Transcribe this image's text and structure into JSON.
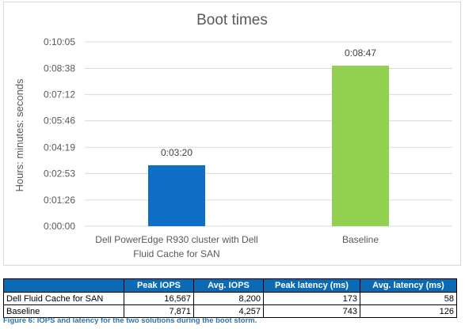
{
  "chart_data": {
    "type": "bar",
    "title": "Boot times",
    "xlabel": "",
    "ylabel": "Hours: minutes: seconds",
    "categories": [
      "Dell PowerEdge R930 cluster with Dell Fluid Cache for SAN",
      "Baseline"
    ],
    "category_lines": [
      [
        "Dell PowerEdge R930 cluster with Dell",
        "Fluid Cache for SAN"
      ],
      [
        "Baseline"
      ]
    ],
    "values_seconds": [
      200,
      527
    ],
    "data_labels": [
      "0:03:20",
      "0:08:47"
    ],
    "bar_colors": [
      "#0f6fc6",
      "#92d050"
    ],
    "ylim_seconds": [
      0,
      605
    ],
    "yticks_seconds": [
      0,
      86,
      173,
      259,
      346,
      432,
      518,
      605
    ],
    "ytick_labels": [
      "0:00:00",
      "0:01:26",
      "0:02:53",
      "0:04:19",
      "0:05:46",
      "0:07:12",
      "0:08:38",
      "0:10:05"
    ],
    "grid": true,
    "legend": "none"
  },
  "table": {
    "headers": [
      "",
      "Peak IOPS",
      "Avg. IOPS",
      "Peak latency (ms)",
      "Avg. latency (ms)"
    ],
    "rows": [
      [
        "Dell Fluid Cache for SAN",
        "16,567",
        "8,200",
        "173",
        "58"
      ],
      [
        "Baseline",
        "7,871",
        "4,257",
        "743",
        "126"
      ]
    ]
  },
  "caption": "Figure 6: IOPS and latency for the two solutions during the boot storm.",
  "colors": {
    "header_bg": "#0a6ab4",
    "caption": "#2e74b5"
  }
}
